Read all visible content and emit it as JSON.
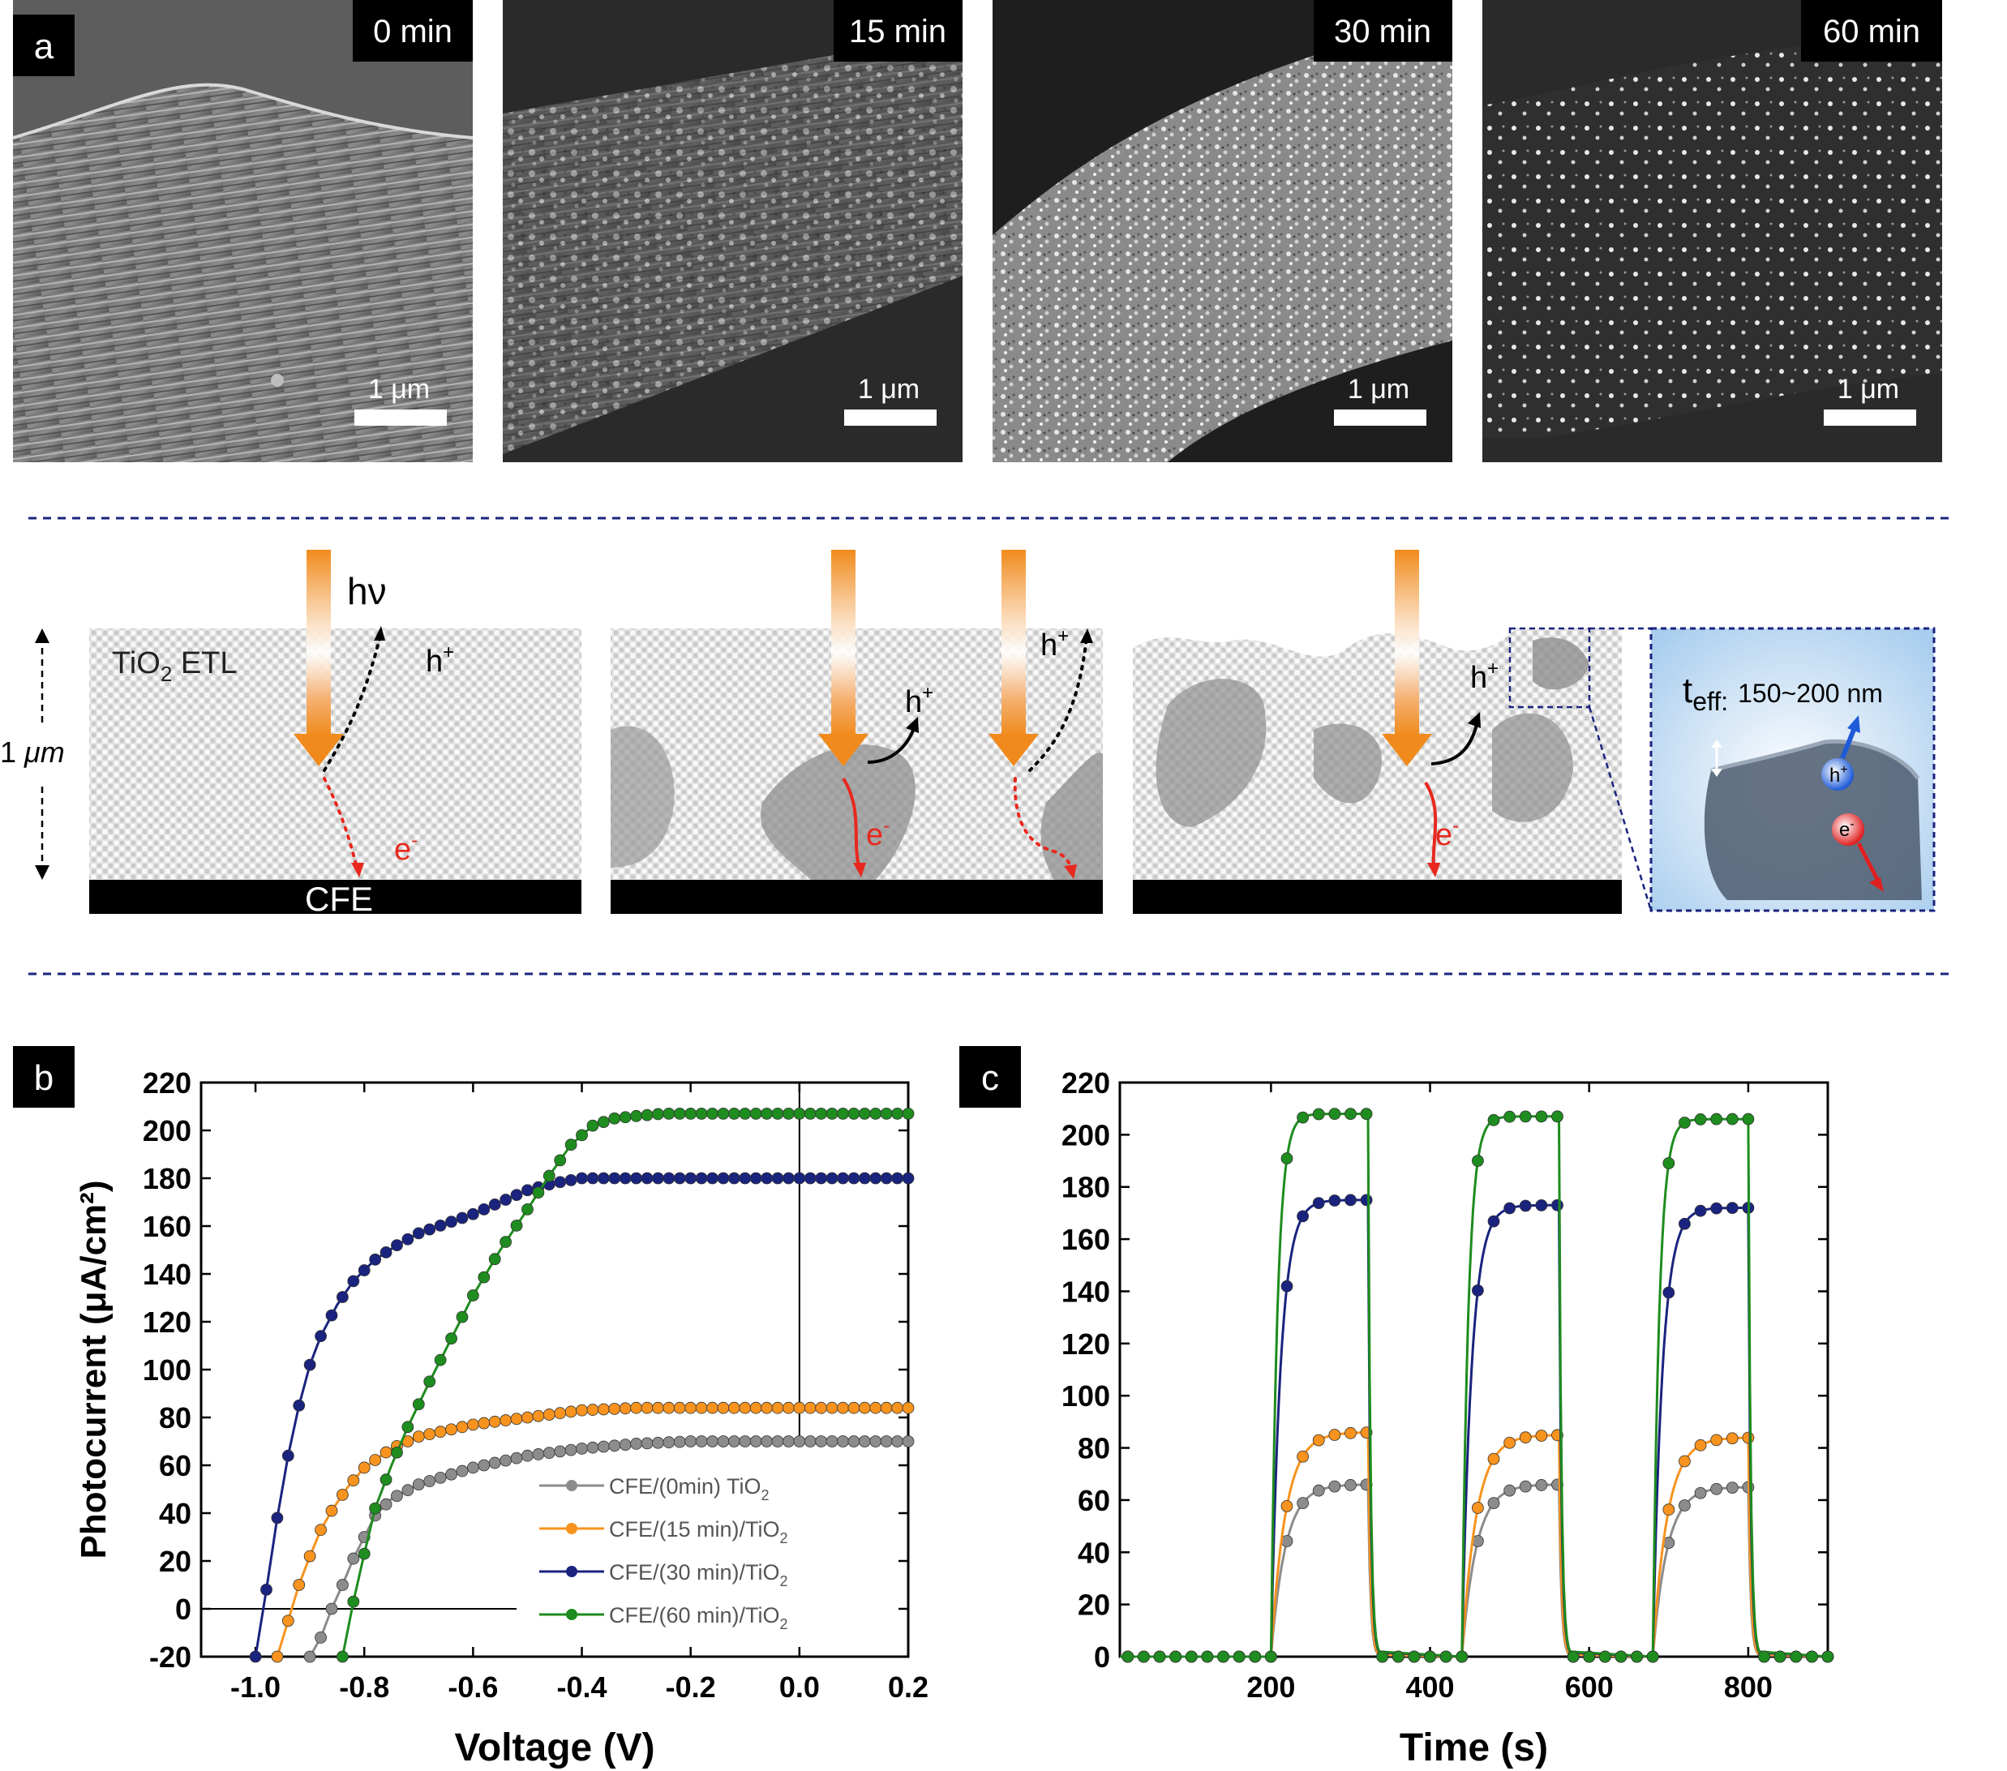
{
  "panel_a": {
    "label": "a",
    "sem_images": [
      {
        "time_label": "0 min",
        "scale_label": "1 μm"
      },
      {
        "time_label": "15 min",
        "scale_label": "1 μm"
      },
      {
        "time_label": "30 min",
        "scale_label": "1 μm"
      },
      {
        "time_label": "60 min",
        "scale_label": "1 μm"
      }
    ],
    "schematic": {
      "hv": "hν",
      "tio2_label": "TiO",
      "tio2_sub": "2",
      "tio2_suffix": " ETL",
      "thickness": "1 ",
      "thickness_unit": "μm",
      "cfe": "CFE",
      "hole": "h",
      "hole_sup": "+",
      "electron": "e",
      "electron_sup": "-",
      "teff": "t",
      "teff_sub": "eff:",
      "teff_value": "150~200 nm",
      "inset_hole": "h",
      "inset_hole_sup": "+",
      "inset_electron": "e",
      "inset_electron_sup": "-"
    },
    "colors": {
      "arrow": "#f08a1c",
      "electron": "#e8281e",
      "divider": "#1a237e"
    }
  },
  "chart_data": [
    {
      "panel_label": "b",
      "type": "line",
      "xlabel": "Voltage (V)",
      "ylabel": "Photocurrent (μA/cm²)",
      "xlim": [
        -1.1,
        0.2
      ],
      "ylim": [
        -20,
        220
      ],
      "xticks": [
        "-1.0",
        "-0.8",
        "-0.6",
        "-0.4",
        "-0.2",
        "0.0",
        "0.2"
      ],
      "yticks": [
        "-20",
        "0",
        "20",
        "40",
        "60",
        "80",
        "100",
        "120",
        "140",
        "160",
        "180",
        "200",
        "220"
      ],
      "legend_position": "bottom-right",
      "series": [
        {
          "name": "CFE/(0min) TiO",
          "sub": "2",
          "color": "#8c8c8c",
          "x": [
            -0.9,
            -0.88,
            -0.86,
            -0.84,
            -0.82,
            -0.8,
            -0.78,
            -0.75,
            -0.7,
            -0.6,
            -0.5,
            -0.4,
            -0.3,
            -0.2,
            0.0,
            0.2
          ],
          "y": [
            -20,
            -12,
            0,
            10,
            21,
            30,
            39,
            46,
            52,
            59,
            64,
            67,
            69,
            70,
            70,
            70
          ]
        },
        {
          "name": "CFE/(15 min)/TiO",
          "sub": "2",
          "color": "#f7931e",
          "x": [
            -0.96,
            -0.94,
            -0.92,
            -0.9,
            -0.88,
            -0.86,
            -0.83,
            -0.8,
            -0.75,
            -0.7,
            -0.6,
            -0.5,
            -0.4,
            -0.3,
            -0.2,
            0.0,
            0.2
          ],
          "y": [
            -20,
            -5,
            10,
            22,
            33,
            41,
            51,
            59,
            67,
            72,
            77,
            80,
            83,
            84,
            84,
            84,
            84
          ]
        },
        {
          "name": "CFE/(30 min)/TiO",
          "sub": "2",
          "color": "#1a237e",
          "x": [
            -1.0,
            -0.98,
            -0.96,
            -0.94,
            -0.92,
            -0.9,
            -0.88,
            -0.85,
            -0.82,
            -0.78,
            -0.74,
            -0.7,
            -0.65,
            -0.6,
            -0.55,
            -0.5,
            -0.45,
            -0.4,
            -0.3,
            -0.2,
            0.0,
            0.2
          ],
          "y": [
            -20,
            8,
            38,
            64,
            85,
            102,
            114,
            127,
            137,
            146,
            152,
            157,
            161,
            165,
            170,
            175,
            178,
            180,
            180,
            180,
            180,
            180
          ]
        },
        {
          "name": "CFE/(60 min)/TiO",
          "sub": "2",
          "color": "#1e8c1e",
          "x": [
            -0.84,
            -0.82,
            -0.8,
            -0.78,
            -0.75,
            -0.72,
            -0.68,
            -0.64,
            -0.6,
            -0.55,
            -0.5,
            -0.46,
            -0.42,
            -0.38,
            -0.34,
            -0.3,
            -0.25,
            -0.2,
            0.0,
            0.2
          ],
          "y": [
            -20,
            3,
            23,
            42,
            60,
            76,
            95,
            113,
            131,
            150,
            167,
            181,
            194,
            202,
            205,
            206,
            207,
            207,
            207,
            207
          ]
        }
      ]
    },
    {
      "panel_label": "c",
      "type": "line",
      "xlabel": "Time (s)",
      "ylabel": "",
      "xlim": [
        10,
        900
      ],
      "ylim": [
        0,
        220
      ],
      "xticks": [
        "200",
        "400",
        "600",
        "800"
      ],
      "yticks": [
        "0",
        "20",
        "40",
        "60",
        "80",
        "100",
        "120",
        "140",
        "160",
        "180",
        "200",
        "220"
      ],
      "on_windows": [
        [
          200,
          322
        ],
        [
          440,
          562
        ],
        [
          680,
          800
        ]
      ],
      "series": [
        {
          "name": "CFE/(0min) TiO₂",
          "color": "#8c8c8c",
          "plateau": [
            66,
            66,
            65
          ]
        },
        {
          "name": "CFE/(15 min)/TiO₂",
          "color": "#f7931e",
          "plateau": [
            86,
            85,
            84
          ]
        },
        {
          "name": "CFE/(30 min)/TiO₂",
          "color": "#1a237e",
          "plateau": [
            175,
            173,
            172
          ]
        },
        {
          "name": "CFE/(60 min)/TiO₂",
          "color": "#1e8c1e",
          "plateau": [
            208,
            207,
            206
          ]
        }
      ]
    }
  ]
}
